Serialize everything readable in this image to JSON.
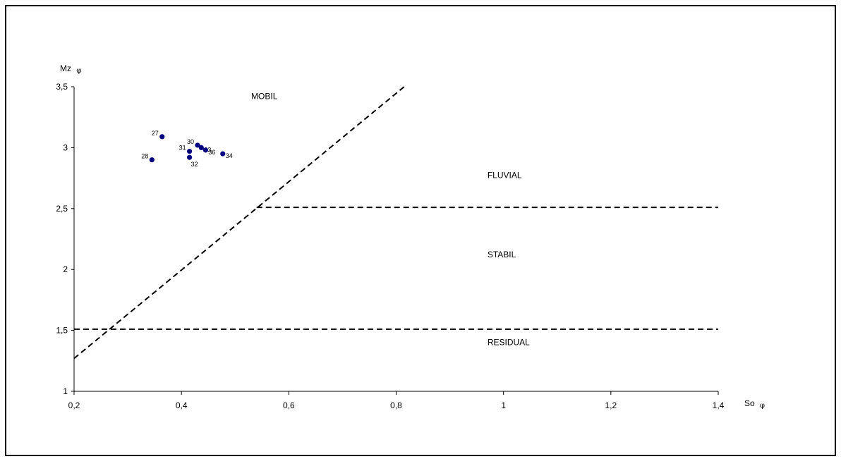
{
  "chart_data": {
    "type": "scatter",
    "title": "",
    "xlabel": "So",
    "xlabel_symbol": "φ",
    "ylabel": "Mz",
    "ylabel_symbol": "φ",
    "xlim": [
      0.2,
      1.4
    ],
    "ylim": [
      1,
      3.5
    ],
    "grid": false,
    "legend": "none",
    "x_ticks": [
      {
        "value": 0.2,
        "label": "0,2"
      },
      {
        "value": 0.4,
        "label": "0,4"
      },
      {
        "value": 0.6,
        "label": "0,6"
      },
      {
        "value": 0.8,
        "label": "0,8"
      },
      {
        "value": 1.0,
        "label": "1"
      },
      {
        "value": 1.2,
        "label": "1,2"
      },
      {
        "value": 1.4,
        "label": "1,4"
      }
    ],
    "y_ticks": [
      {
        "value": 1.0,
        "label": "1"
      },
      {
        "value": 1.5,
        "label": "1,5"
      },
      {
        "value": 2.0,
        "label": "2"
      },
      {
        "value": 2.5,
        "label": "2,5"
      },
      {
        "value": 3.0,
        "label": "3"
      },
      {
        "value": 3.5,
        "label": "3,5"
      }
    ],
    "points": [
      {
        "label": "27",
        "x": 0.364,
        "y": 3.09,
        "label_side": "left"
      },
      {
        "label": "28",
        "x": 0.345,
        "y": 2.9,
        "label_side": "left"
      },
      {
        "label": "30",
        "x": 0.43,
        "y": 3.02,
        "label_side": "left"
      },
      {
        "label": "33",
        "x": 0.437,
        "y": 3.0,
        "label_side": "right"
      },
      {
        "label": "36",
        "x": 0.445,
        "y": 2.98,
        "label_side": "right"
      },
      {
        "label": "31",
        "x": 0.415,
        "y": 2.97,
        "label_side": "left"
      },
      {
        "label": "32",
        "x": 0.415,
        "y": 2.92,
        "label_side": "below"
      },
      {
        "label": "34",
        "x": 0.477,
        "y": 2.95,
        "label_side": "right"
      }
    ],
    "point_color": "#000080",
    "boundary_lines": [
      {
        "name": "mobil-fluvial",
        "from": [
          0.2,
          1.27
        ],
        "to": [
          0.815,
          3.5
        ]
      },
      {
        "name": "fluvial-stabil",
        "from": [
          0.54,
          2.51
        ],
        "to": [
          1.4,
          2.51
        ]
      },
      {
        "name": "stabil-residual",
        "from": [
          0.2,
          1.51
        ],
        "to": [
          1.4,
          1.51
        ]
      }
    ],
    "regions": [
      {
        "label": "MOBIL",
        "x": 0.53,
        "y": 3.4
      },
      {
        "label": "FLUVIAL",
        "x": 0.97,
        "y": 2.75
      },
      {
        "label": "STABIL",
        "x": 0.97,
        "y": 2.1
      },
      {
        "label": "RESIDUAL",
        "x": 0.97,
        "y": 1.38
      }
    ]
  }
}
